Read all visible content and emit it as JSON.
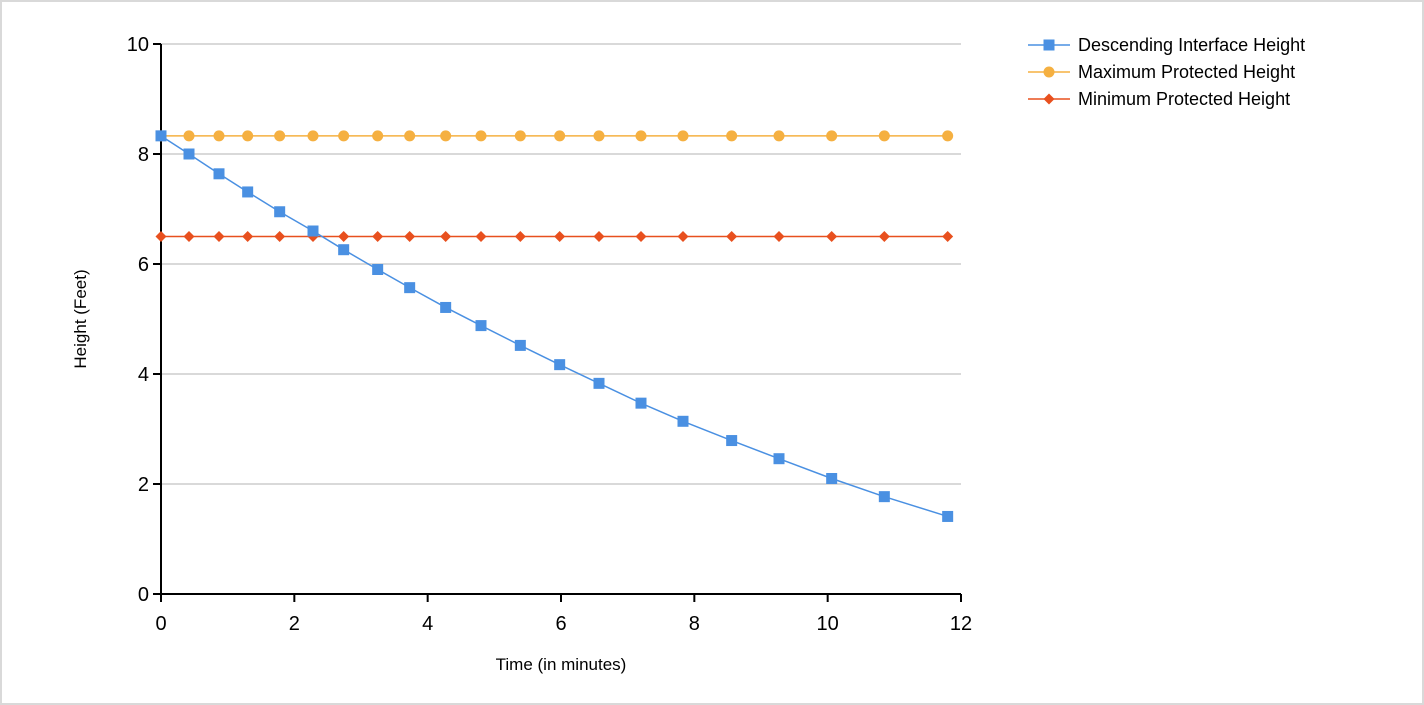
{
  "chart_data": {
    "type": "line",
    "title": "",
    "xlabel": "Time (in minutes)",
    "ylabel": "Height (Feet)",
    "xlim": [
      0,
      12
    ],
    "ylim": [
      0,
      10
    ],
    "xticks": [
      "0",
      "2",
      "4",
      "6",
      "8",
      "10",
      "12"
    ],
    "yticks": [
      "0",
      "2",
      "4",
      "6",
      "8",
      "10"
    ],
    "grid": "horizontal",
    "legend_position": "top-right",
    "x": [
      0,
      0.42,
      0.87,
      1.3,
      1.78,
      2.28,
      2.74,
      3.25,
      3.73,
      4.27,
      4.8,
      5.39,
      5.98,
      6.57,
      7.2,
      7.83,
      8.56,
      9.27,
      10.06,
      10.85,
      11.8
    ],
    "series": [
      {
        "name": "Descending Interface Height",
        "color": "#4a90e2",
        "marker": "square",
        "values": [
          8.33,
          8.0,
          7.64,
          7.31,
          6.95,
          6.6,
          6.26,
          5.9,
          5.57,
          5.21,
          4.88,
          4.52,
          4.17,
          3.83,
          3.47,
          3.14,
          2.79,
          2.46,
          2.1,
          1.77,
          1.41
        ]
      },
      {
        "name": "Maximum Protected Height",
        "color": "#f5b041",
        "marker": "circle",
        "values": [
          8.33,
          8.33,
          8.33,
          8.33,
          8.33,
          8.33,
          8.33,
          8.33,
          8.33,
          8.33,
          8.33,
          8.33,
          8.33,
          8.33,
          8.33,
          8.33,
          8.33,
          8.33,
          8.33,
          8.33,
          8.33
        ]
      },
      {
        "name": "Minimum Protected Height",
        "color": "#e8501e",
        "marker": "diamond",
        "values": [
          6.5,
          6.5,
          6.5,
          6.5,
          6.5,
          6.5,
          6.5,
          6.5,
          6.5,
          6.5,
          6.5,
          6.5,
          6.5,
          6.5,
          6.5,
          6.5,
          6.5,
          6.5,
          6.5,
          6.5,
          6.5
        ]
      }
    ]
  }
}
